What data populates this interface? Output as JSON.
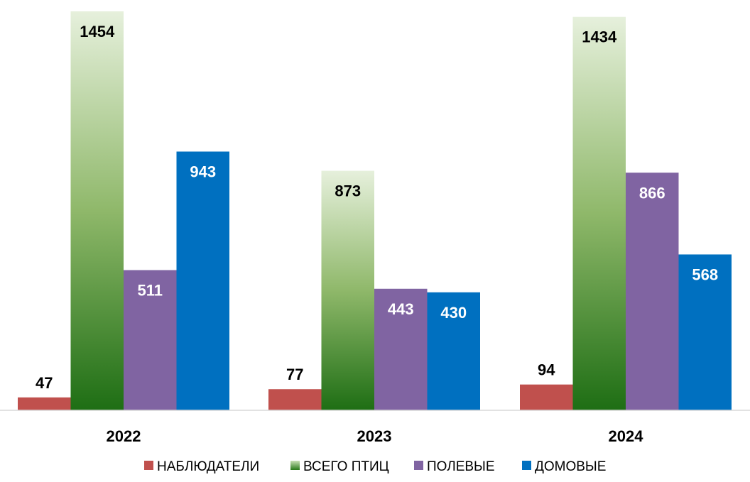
{
  "chart_data": {
    "type": "bar",
    "categories": [
      "2022",
      "2023",
      "2024"
    ],
    "series": [
      {
        "name": "НАБЛЮДАТЕЛИ",
        "values": [
          47,
          77,
          94
        ],
        "color": "#c0504d",
        "label_color": "#000000"
      },
      {
        "name": "ВСЕГО ПТИЦ",
        "values": [
          1454,
          873,
          1434
        ],
        "color": "#2f8a1f",
        "gradient_top": "#e6f0dc",
        "gradient_bottom": "#1e6e14",
        "label_color": "#000000"
      },
      {
        "name": "ПОЛЕВЫЕ",
        "values": [
          511,
          443,
          866
        ],
        "color": "#8064a2",
        "label_color": "#ffffff"
      },
      {
        "name": "ДОМОВЫЕ",
        "values": [
          943,
          430,
          568
        ],
        "color": "#0070c0",
        "label_color": "#ffffff"
      }
    ],
    "ylim": [
      0,
      1454
    ],
    "grid": false,
    "legend_position": "bottom"
  }
}
